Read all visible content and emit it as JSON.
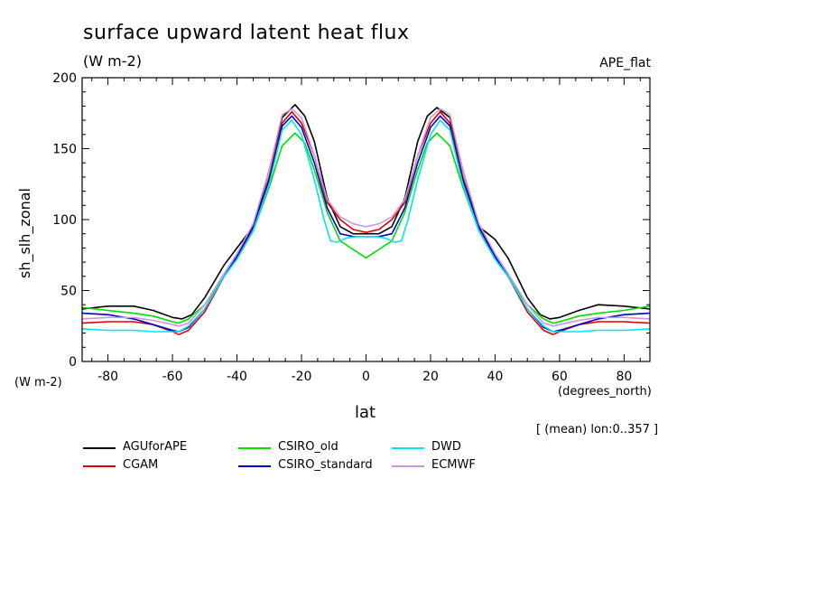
{
  "chart_data": {
    "type": "line",
    "title": "surface upward latent heat flux",
    "units": "(W m-2)",
    "case": "APE_flat",
    "xlabel": "lat",
    "xunits": "(degrees_north)",
    "ylabel": "sh_slh_zonal",
    "yunits": "(W m-2)",
    "note": "[ (mean) lon:0..357 ]",
    "xlim": [
      -88,
      88
    ],
    "ylim": [
      0,
      200
    ],
    "xticks": [
      "-80",
      "-60",
      "-40",
      "-20",
      "0",
      "20",
      "40",
      "60",
      "80"
    ],
    "yticks": [
      "0",
      "50",
      "100",
      "150",
      "200"
    ],
    "legend_position": "bottom",
    "series": [
      {
        "name": "AGUforAPE",
        "color": "#000000",
        "x": [
          -88,
          -80,
          -72,
          -66,
          -60,
          -57,
          -54,
          -50,
          -44,
          -40,
          -35,
          -30,
          -26,
          -22,
          -19,
          -16,
          -12,
          -8,
          -4,
          0,
          4,
          8,
          12,
          16,
          19,
          22,
          26,
          30,
          35,
          40,
          44,
          50,
          54,
          57,
          60,
          66,
          72,
          80,
          88
        ],
        "y": [
          37,
          39,
          39,
          36,
          31,
          30,
          33,
          45,
          68,
          80,
          95,
          135,
          172,
          181,
          173,
          155,
          115,
          95,
          90,
          90,
          90,
          95,
          115,
          155,
          173,
          179,
          172,
          135,
          95,
          86,
          73,
          45,
          33,
          30,
          31,
          36,
          40,
          39,
          37
        ]
      },
      {
        "name": "CGAM",
        "color": "#dd0000",
        "x": [
          -88,
          -80,
          -72,
          -66,
          -60,
          -58,
          -55,
          -50,
          -44,
          -40,
          -35,
          -30,
          -26,
          -23,
          -20,
          -16,
          -12,
          -8,
          -4,
          0,
          4,
          8,
          12,
          16,
          20,
          23,
          26,
          30,
          35,
          40,
          44,
          50,
          55,
          58,
          60,
          66,
          72,
          80,
          88
        ],
        "y": [
          27,
          28,
          28,
          26,
          21,
          19,
          22,
          35,
          60,
          73,
          93,
          130,
          168,
          176,
          168,
          145,
          112,
          100,
          93,
          91,
          93,
          100,
          112,
          145,
          168,
          176,
          168,
          130,
          93,
          73,
          60,
          35,
          22,
          19,
          21,
          26,
          28,
          28,
          27
        ]
      },
      {
        "name": "CSIRO_old",
        "color": "#00dd00",
        "x": [
          -88,
          -80,
          -72,
          -66,
          -60,
          -58,
          -55,
          -50,
          -44,
          -40,
          -35,
          -30,
          -26,
          -22,
          -19,
          -16,
          -12,
          -8,
          -4,
          0,
          4,
          8,
          12,
          16,
          19,
          22,
          26,
          30,
          35,
          40,
          44,
          50,
          55,
          58,
          60,
          66,
          72,
          80,
          88
        ],
        "y": [
          38,
          36,
          34,
          32,
          28,
          27,
          30,
          40,
          60,
          72,
          92,
          123,
          152,
          161,
          154,
          135,
          105,
          85,
          79,
          73,
          79,
          85,
          105,
          135,
          154,
          161,
          152,
          123,
          92,
          72,
          60,
          40,
          30,
          27,
          28,
          32,
          34,
          36,
          39
        ]
      },
      {
        "name": "CSIRO_standard",
        "color": "#0000cc",
        "x": [
          -88,
          -80,
          -72,
          -66,
          -60,
          -58,
          -55,
          -50,
          -44,
          -40,
          -35,
          -30,
          -26,
          -23,
          -20,
          -16,
          -12,
          -8,
          -4,
          0,
          4,
          8,
          12,
          16,
          20,
          23,
          26,
          30,
          35,
          40,
          44,
          50,
          55,
          58,
          60,
          66,
          72,
          80,
          88
        ],
        "y": [
          34,
          33,
          30,
          26,
          22,
          21,
          24,
          37,
          60,
          74,
          95,
          128,
          166,
          173,
          165,
          140,
          108,
          90,
          88,
          88,
          88,
          90,
          108,
          140,
          165,
          173,
          166,
          128,
          95,
          74,
          60,
          37,
          24,
          21,
          22,
          26,
          30,
          33,
          34
        ]
      },
      {
        "name": "DWD",
        "color": "#00e5ee",
        "x": [
          -88,
          -80,
          -72,
          -66,
          -60,
          -58,
          -55,
          -50,
          -44,
          -40,
          -35,
          -30,
          -26,
          -23,
          -20,
          -16,
          -13,
          -11,
          -9,
          -6,
          -3,
          0,
          3,
          6,
          9,
          11,
          13,
          16,
          20,
          23,
          26,
          30,
          35,
          40,
          44,
          50,
          55,
          58,
          60,
          66,
          72,
          80,
          88
        ],
        "y": [
          23,
          22,
          22,
          21,
          21,
          21,
          25,
          37,
          60,
          72,
          92,
          125,
          163,
          170,
          160,
          128,
          100,
          85,
          84,
          87,
          88,
          88,
          88,
          87,
          84,
          85,
          100,
          128,
          160,
          170,
          163,
          125,
          92,
          72,
          60,
          37,
          25,
          21,
          21,
          21,
          22,
          22,
          23
        ]
      },
      {
        "name": "ECMWF",
        "color": "#cc99dd",
        "x": [
          -88,
          -80,
          -72,
          -66,
          -60,
          -58,
          -55,
          -50,
          -44,
          -40,
          -35,
          -30,
          -26,
          -23,
          -20,
          -16,
          -12,
          -8,
          -4,
          0,
          4,
          8,
          12,
          16,
          20,
          23,
          26,
          30,
          35,
          40,
          44,
          50,
          55,
          58,
          60,
          66,
          72,
          80,
          88
        ],
        "y": [
          30,
          31,
          31,
          29,
          26,
          25,
          27,
          40,
          62,
          76,
          97,
          135,
          174,
          178,
          172,
          145,
          114,
          102,
          97,
          95,
          97,
          102,
          114,
          145,
          172,
          178,
          174,
          135,
          97,
          76,
          62,
          40,
          27,
          25,
          26,
          29,
          31,
          31,
          30
        ]
      }
    ]
  }
}
